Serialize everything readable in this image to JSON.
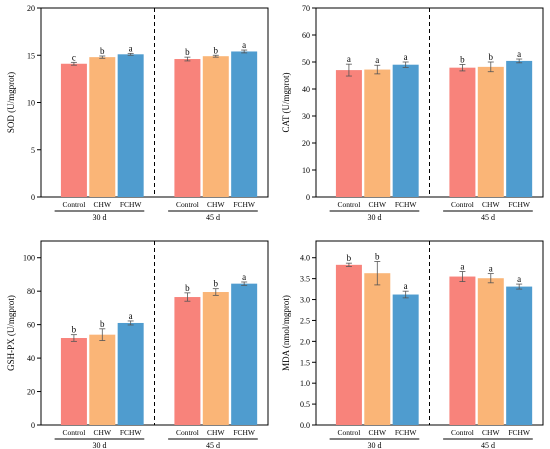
{
  "colors": {
    "control": "#f8837b",
    "chw": "#fab577",
    "fchw": "#4f9ccf"
  },
  "chart_data": [
    {
      "type": "bar",
      "ylabel": "SOD (U/mgprot)",
      "ylim": [
        0,
        20
      ],
      "yticks": [
        0,
        5,
        10,
        15,
        20
      ],
      "groups": [
        "30 d",
        "45 d"
      ],
      "categories": [
        "Control",
        "CHW",
        "FCHW"
      ],
      "series": [
        {
          "group": "30 d",
          "values": [
            14.1,
            14.8,
            15.1
          ],
          "errors": [
            0.15,
            0.12,
            0.1
          ],
          "letters": [
            "c",
            "b",
            "a"
          ]
        },
        {
          "group": "45 d",
          "values": [
            14.6,
            14.9,
            15.4
          ],
          "errors": [
            0.2,
            0.1,
            0.15
          ],
          "letters": [
            "b",
            "b",
            "a"
          ]
        }
      ]
    },
    {
      "type": "bar",
      "ylabel": "CAT (U/mgprot)",
      "ylim": [
        0,
        70
      ],
      "yticks": [
        0,
        10,
        20,
        30,
        40,
        50,
        60,
        70
      ],
      "groups": [
        "30 d",
        "45 d"
      ],
      "categories": [
        "Control",
        "CHW",
        "FCHW"
      ],
      "series": [
        {
          "group": "30 d",
          "values": [
            47.0,
            47.2,
            49.0
          ],
          "errors": [
            2.2,
            1.6,
            1.0
          ],
          "letters": [
            "a",
            "a",
            "a"
          ]
        },
        {
          "group": "45 d",
          "values": [
            47.9,
            48.2,
            50.4
          ],
          "errors": [
            1.2,
            1.8,
            0.7
          ],
          "letters": [
            "b",
            "b",
            "a"
          ]
        }
      ]
    },
    {
      "type": "bar",
      "ylabel": "GSH-PX (U/mgprot)",
      "ylim": [
        0,
        110
      ],
      "yticks": [
        0,
        20,
        40,
        60,
        80,
        100
      ],
      "groups": [
        "30 d",
        "45 d"
      ],
      "categories": [
        "Control",
        "CHW",
        "FCHW"
      ],
      "series": [
        {
          "group": "30 d",
          "values": [
            52.0,
            54.0,
            61.0
          ],
          "errors": [
            2.0,
            3.5,
            1.2
          ],
          "letters": [
            "b",
            "b",
            "a"
          ]
        },
        {
          "group": "45 d",
          "values": [
            76.5,
            79.5,
            84.5
          ],
          "errors": [
            2.5,
            2.0,
            1.0
          ],
          "letters": [
            "b",
            "b",
            "a"
          ]
        }
      ]
    },
    {
      "type": "bar",
      "ylabel": "MDA (nmol/mgprot)",
      "ylim": [
        0,
        4.4
      ],
      "yticks": [
        0,
        0.5,
        1.0,
        1.5,
        2.0,
        2.5,
        3.0,
        3.5,
        4.0
      ],
      "ytick_labels": [
        "0.0",
        "0.5",
        "1.0",
        "1.5",
        "2.0",
        "2.5",
        "3.0",
        "3.5",
        "4.0"
      ],
      "groups": [
        "30 d",
        "45 d"
      ],
      "categories": [
        "Control",
        "CHW",
        "FCHW"
      ],
      "series": [
        {
          "group": "30 d",
          "values": [
            3.83,
            3.63,
            3.12
          ],
          "errors": [
            0.04,
            0.28,
            0.08
          ],
          "letters": [
            "b",
            "b",
            "a"
          ]
        },
        {
          "group": "45 d",
          "values": [
            3.55,
            3.51,
            3.31
          ],
          "errors": [
            0.12,
            0.11,
            0.06
          ],
          "letters": [
            "a",
            "a",
            "a"
          ]
        }
      ]
    }
  ]
}
